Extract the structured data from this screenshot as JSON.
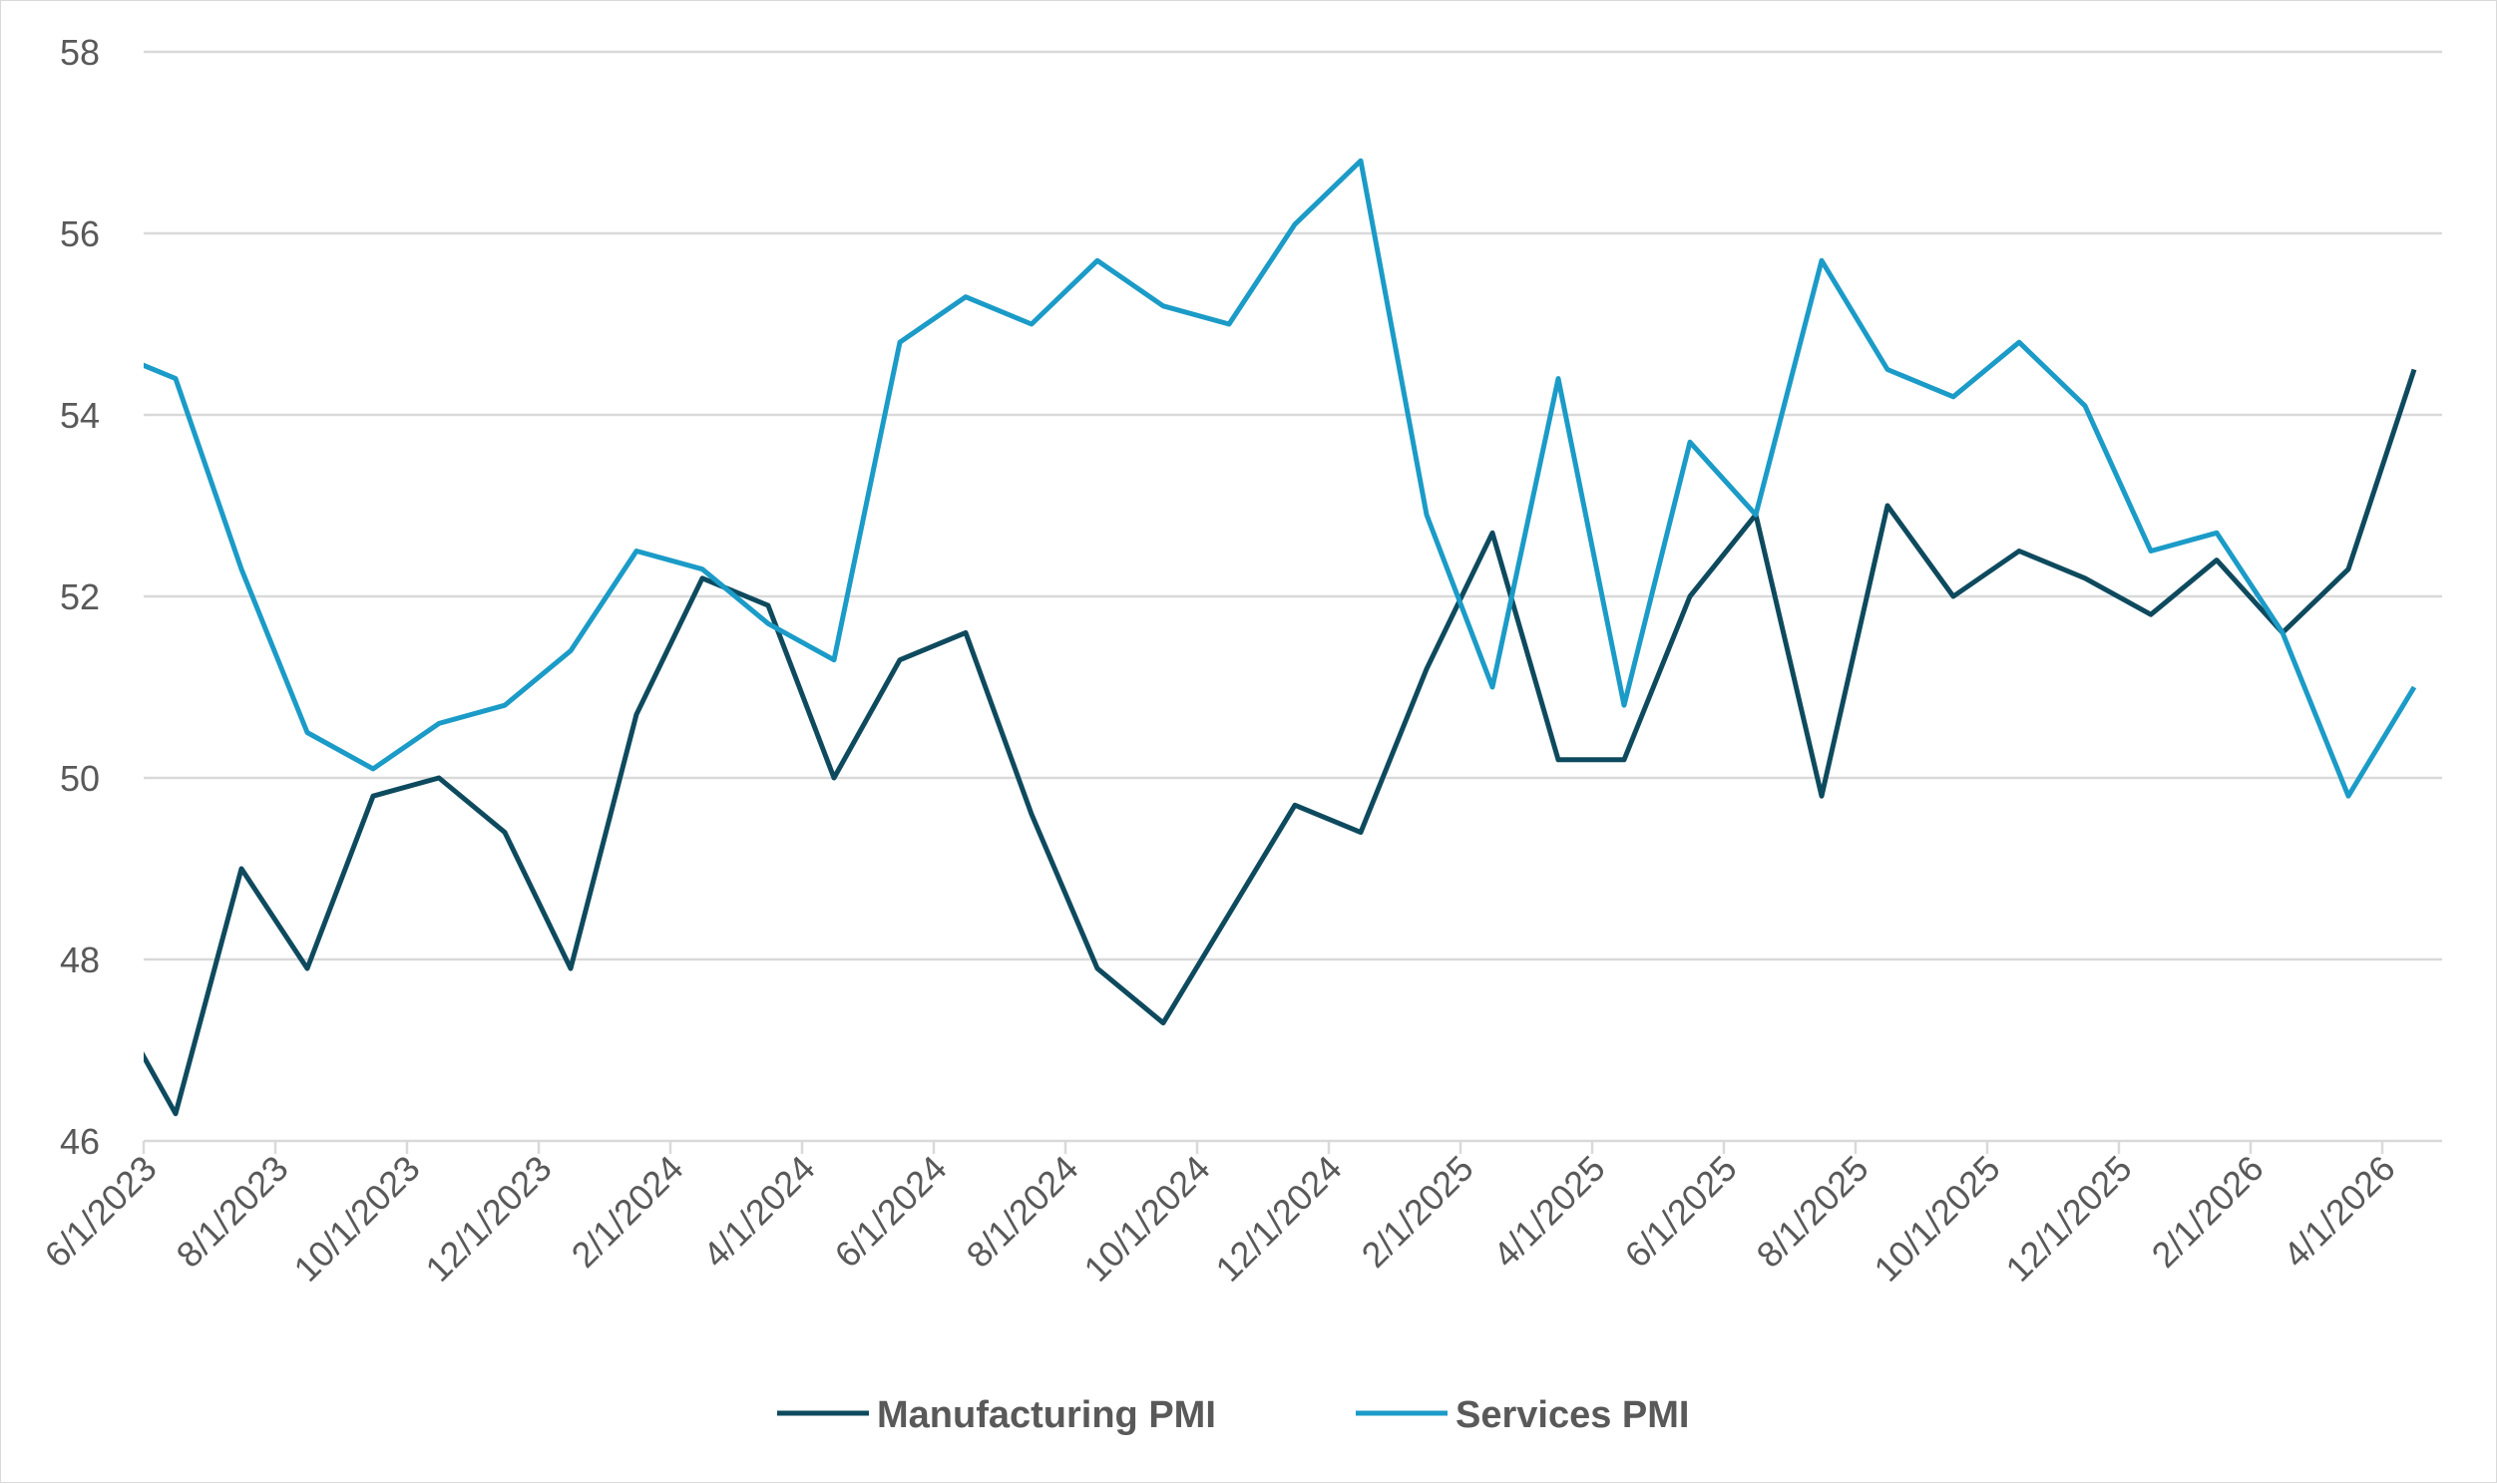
{
  "chart_data": {
    "type": "line",
    "title": "",
    "xlabel": "",
    "ylabel": "",
    "ylim": [
      46,
      58
    ],
    "yticks": [
      46,
      48,
      50,
      52,
      54,
      56,
      58
    ],
    "grid": true,
    "legend_position": "bottom",
    "x_tick_labels": [
      "6/1/2023",
      "8/1/2023",
      "10/1/2023",
      "12/1/2023",
      "2/1/2024",
      "4/1/2024",
      "6/1/2024",
      "8/1/2024",
      "10/1/2024",
      "12/1/2024",
      "2/1/2025",
      "4/1/2025",
      "6/1/2025",
      "8/1/2025",
      "10/1/2025",
      "12/1/2025",
      "2/1/2026",
      "4/1/2026"
    ],
    "x": [
      "6/1/2023",
      "7/1/2023",
      "8/1/2023",
      "9/1/2023",
      "10/1/2023",
      "11/1/2023",
      "12/1/2023",
      "1/1/2024",
      "2/1/2024",
      "3/1/2024",
      "4/1/2024",
      "5/1/2024",
      "6/1/2024",
      "7/1/2024",
      "8/1/2024",
      "9/1/2024",
      "10/1/2024",
      "11/1/2024",
      "12/1/2024",
      "1/1/2025",
      "2/1/2025",
      "3/1/2025",
      "4/1/2025",
      "5/1/2025",
      "6/1/2025",
      "7/1/2025",
      "8/1/2025",
      "9/1/2025",
      "10/1/2025",
      "11/1/2025",
      "12/1/2025",
      "1/1/2026",
      "2/1/2026",
      "3/1/2026",
      "4/1/2026"
    ],
    "series": [
      {
        "name": "Manufacturing PMI",
        "color": "#0e4a5e",
        "values": [
          46.3,
          49.0,
          47.9,
          49.8,
          50.0,
          49.4,
          47.9,
          50.7,
          52.2,
          51.9,
          50.0,
          51.3,
          51.6,
          49.6,
          47.9,
          47.3,
          48.5,
          49.7,
          49.4,
          51.2,
          52.7,
          50.2,
          50.2,
          52.0,
          52.9,
          49.8,
          53.0,
          52.0,
          52.5,
          52.2,
          51.8,
          52.4,
          51.6,
          52.3,
          54.5
        ]
      },
      {
        "name": "Services PMI",
        "color": "#1b9bc7",
        "values": [
          54.4,
          52.3,
          50.5,
          50.1,
          50.6,
          50.8,
          51.4,
          52.5,
          52.3,
          51.7,
          51.3,
          54.8,
          55.3,
          55.0,
          55.7,
          55.2,
          55.0,
          56.1,
          56.8,
          52.9,
          51.0,
          54.4,
          50.8,
          53.7,
          52.9,
          55.7,
          54.5,
          54.2,
          54.8,
          54.1,
          52.5,
          52.7,
          51.6,
          49.8,
          51.0
        ]
      }
    ]
  }
}
